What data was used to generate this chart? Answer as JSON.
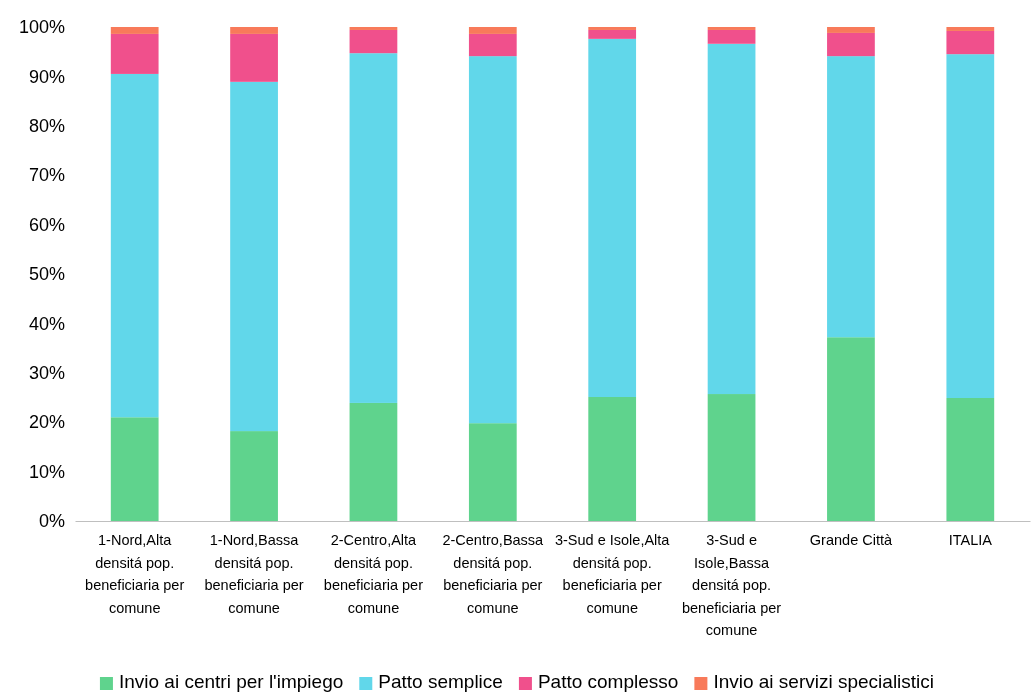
{
  "chart_data": {
    "type": "bar",
    "stacked": true,
    "categories": [
      "1-Nord,Alta densitá pop. beneficiaria per comune",
      "1-Nord,Bassa densitá pop. beneficiaria per comune",
      "2-Centro,Alta densitá pop. beneficiaria per comune",
      "2-Centro,Bassa densitá pop. beneficiaria per comune",
      "3-Sud e Isole,Alta densitá pop. beneficiaria per comune",
      "3-Sud e Isole,Bassa densitá pop. beneficiaria per comune",
      "Grande Città",
      "ITALIA"
    ],
    "series": [
      {
        "name": "Invio ai centri per l'impiego",
        "color": "#5fd38d",
        "values": [
          21.0,
          18.2,
          23.9,
          19.8,
          25.1,
          25.7,
          37.2,
          24.9
        ]
      },
      {
        "name": "Patto semplice",
        "color": "#61d7ea",
        "values": [
          69.5,
          70.7,
          70.8,
          74.3,
          72.5,
          70.9,
          56.9,
          69.6
        ]
      },
      {
        "name": "Patto complesso",
        "color": "#f0508c",
        "values": [
          8.1,
          9.7,
          4.7,
          4.5,
          1.8,
          2.8,
          4.7,
          4.7
        ]
      },
      {
        "name": "Invio ai servizi specialistici",
        "color": "#f87a5a",
        "values": [
          1.4,
          1.4,
          0.6,
          1.4,
          0.6,
          0.6,
          1.2,
          0.8
        ]
      }
    ],
    "ylim": [
      0,
      100
    ],
    "yticks": [
      {
        "value": 0,
        "label": "0%"
      },
      {
        "value": 10,
        "label": "10%"
      },
      {
        "value": 20,
        "label": "20%"
      },
      {
        "value": 30,
        "label": "30%"
      },
      {
        "value": 40,
        "label": "40%"
      },
      {
        "value": 50,
        "label": "50%"
      },
      {
        "value": 60,
        "label": "60%"
      },
      {
        "value": 70,
        "label": "70%"
      },
      {
        "value": 80,
        "label": "80%"
      },
      {
        "value": 90,
        "label": "90%"
      },
      {
        "value": 100,
        "label": "100%"
      }
    ],
    "grid": false,
    "legend": "bottom"
  }
}
